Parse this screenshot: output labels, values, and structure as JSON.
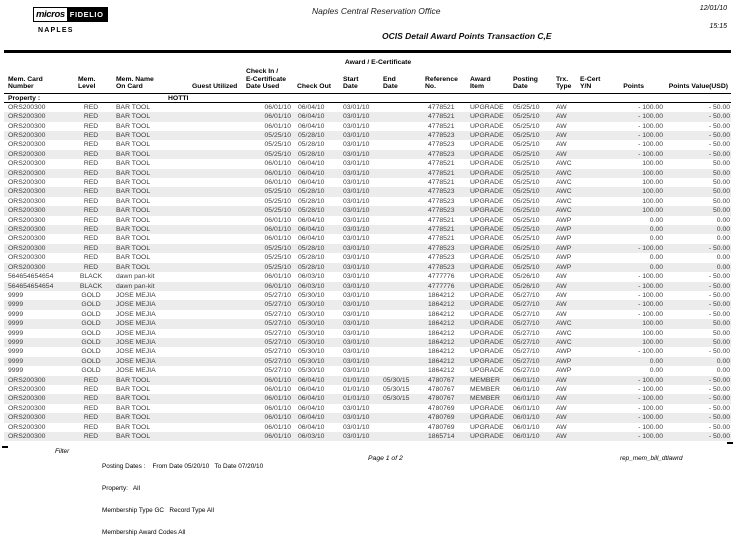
{
  "header": {
    "logo": {
      "brand_bold": "micros",
      "brand_box": "FIDELIO",
      "property": "NAPLES"
    },
    "office": "Naples Central Reservation Office",
    "report_title": "OCIS Detail Award Points Transaction C,E",
    "date": "12/01/10",
    "time": "15:15"
  },
  "table": {
    "group_header": "Award / E-Certificate",
    "headers": [
      "Mem. Card\nNumber",
      "Mem.\nLevel",
      "Mem. Name\nOn Card",
      "Guest Utilized",
      "Check In /\nE-Certificate\nDate Used",
      "Check Out",
      "Start\nDate",
      "End\nDate",
      "Reference No.",
      "Award\nItem",
      "Posting\nDate",
      "Trx.\nType",
      "E-Cert\nY/N",
      "Points",
      "Points Value(USD)"
    ],
    "property_label": "Property :",
    "property_value": "HOTTI",
    "rows": [
      [
        "ORS200300",
        "RED",
        "BAR TOOL",
        "",
        "06/01/10",
        "06/04/10",
        "03/01/10",
        "",
        "4778521",
        "UPGRADE",
        "05/25/10",
        "AW",
        "",
        "- 100.00",
        "- 50.00"
      ],
      [
        "ORS200300",
        "RED",
        "BAR TOOL",
        "",
        "06/01/10",
        "06/04/10",
        "03/01/10",
        "",
        "4778521",
        "UPGRADE",
        "05/25/10",
        "AW",
        "",
        "- 100.00",
        "- 50.00"
      ],
      [
        "ORS200300",
        "RED",
        "BAR TOOL",
        "",
        "06/01/10",
        "06/04/10",
        "03/01/10",
        "",
        "4778521",
        "UPGRADE",
        "05/25/10",
        "AW",
        "",
        "- 100.00",
        "- 50.00"
      ],
      [
        "ORS200300",
        "RED",
        "BAR TOOL",
        "",
        "05/25/10",
        "05/28/10",
        "03/01/10",
        "",
        "4778523",
        "UPGRADE",
        "05/25/10",
        "AW",
        "",
        "- 100.00",
        "- 50.00"
      ],
      [
        "ORS200300",
        "RED",
        "BAR TOOL",
        "",
        "05/25/10",
        "05/28/10",
        "03/01/10",
        "",
        "4778523",
        "UPGRADE",
        "05/25/10",
        "AW",
        "",
        "- 100.00",
        "- 50.00"
      ],
      [
        "ORS200300",
        "RED",
        "BAR TOOL",
        "",
        "05/25/10",
        "05/28/10",
        "03/01/10",
        "",
        "4778523",
        "UPGRADE",
        "05/25/10",
        "AW",
        "",
        "- 100.00",
        "- 50.00"
      ],
      [
        "ORS200300",
        "RED",
        "BAR TOOL",
        "",
        "06/01/10",
        "06/04/10",
        "03/01/10",
        "",
        "4778521",
        "UPGRADE",
        "05/25/10",
        "AWC",
        "",
        "100.00",
        "50.00"
      ],
      [
        "ORS200300",
        "RED",
        "BAR TOOL",
        "",
        "06/01/10",
        "06/04/10",
        "03/01/10",
        "",
        "4778521",
        "UPGRADE",
        "05/25/10",
        "AWC",
        "",
        "100.00",
        "50.00"
      ],
      [
        "ORS200300",
        "RED",
        "BAR TOOL",
        "",
        "06/01/10",
        "06/04/10",
        "03/01/10",
        "",
        "4778521",
        "UPGRADE",
        "05/25/10",
        "AWC",
        "",
        "100.00",
        "50.00"
      ],
      [
        "ORS200300",
        "RED",
        "BAR TOOL",
        "",
        "05/25/10",
        "05/28/10",
        "03/01/10",
        "",
        "4778523",
        "UPGRADE",
        "05/25/10",
        "AWC",
        "",
        "100.00",
        "50.00"
      ],
      [
        "ORS200300",
        "RED",
        "BAR TOOL",
        "",
        "05/25/10",
        "05/28/10",
        "03/01/10",
        "",
        "4778523",
        "UPGRADE",
        "05/25/10",
        "AWC",
        "",
        "100.00",
        "50.00"
      ],
      [
        "ORS200300",
        "RED",
        "BAR TOOL",
        "",
        "05/25/10",
        "05/28/10",
        "03/01/10",
        "",
        "4778523",
        "UPGRADE",
        "05/25/10",
        "AWC",
        "",
        "100.00",
        "50.00"
      ],
      [
        "ORS200300",
        "RED",
        "BAR TOOL",
        "",
        "06/01/10",
        "06/04/10",
        "03/01/10",
        "",
        "4778521",
        "UPGRADE",
        "05/25/10",
        "AWP",
        "",
        "0.00",
        "0.00"
      ],
      [
        "ORS200300",
        "RED",
        "BAR TOOL",
        "",
        "06/01/10",
        "06/04/10",
        "03/01/10",
        "",
        "4778521",
        "UPGRADE",
        "05/25/10",
        "AWP",
        "",
        "0.00",
        "0.00"
      ],
      [
        "ORS200300",
        "RED",
        "BAR TOOL",
        "",
        "06/01/10",
        "06/04/10",
        "03/01/10",
        "",
        "4778521",
        "UPGRADE",
        "05/25/10",
        "AWP",
        "",
        "0.00",
        "0.00"
      ],
      [
        "ORS200300",
        "RED",
        "BAR TOOL",
        "",
        "05/25/10",
        "05/28/10",
        "03/01/10",
        "",
        "4778523",
        "UPGRADE",
        "05/25/10",
        "AWP",
        "",
        "- 100.00",
        "- 50.00"
      ],
      [
        "ORS200300",
        "RED",
        "BAR TOOL",
        "",
        "05/25/10",
        "05/28/10",
        "03/01/10",
        "",
        "4778523",
        "UPGRADE",
        "05/25/10",
        "AWP",
        "",
        "0.00",
        "0.00"
      ],
      [
        "ORS200300",
        "RED",
        "BAR TOOL",
        "",
        "05/25/10",
        "05/28/10",
        "03/01/10",
        "",
        "4778523",
        "UPGRADE",
        "05/25/10",
        "AWP",
        "",
        "0.00",
        "0.00"
      ],
      [
        "564654654654",
        "BLACK",
        "dawn pan-kit",
        "",
        "06/01/10",
        "06/03/10",
        "03/01/10",
        "",
        "4777776",
        "UPGRADE",
        "05/26/10",
        "AW",
        "",
        "- 100.00",
        "- 50.00"
      ],
      [
        "564654654654",
        "BLACK",
        "dawn pan-kit",
        "",
        "06/01/10",
        "06/03/10",
        "03/01/10",
        "",
        "4777776",
        "UPGRADE",
        "05/26/10",
        "AW",
        "",
        "- 100.00",
        "- 50.00"
      ],
      [
        "9999",
        "GOLD",
        "JOSE MEJIA",
        "",
        "05/27/10",
        "05/30/10",
        "03/01/10",
        "",
        "1864212",
        "UPGRADE",
        "05/27/10",
        "AW",
        "",
        "- 100.00",
        "- 50.00"
      ],
      [
        "9999",
        "GOLD",
        "JOSE MEJIA",
        "",
        "05/27/10",
        "05/30/10",
        "03/01/10",
        "",
        "1864212",
        "UPGRADE",
        "05/27/10",
        "AW",
        "",
        "- 100.00",
        "- 50.00"
      ],
      [
        "9999",
        "GOLD",
        "JOSE MEJIA",
        "",
        "05/27/10",
        "05/30/10",
        "03/01/10",
        "",
        "1864212",
        "UPGRADE",
        "05/27/10",
        "AW",
        "",
        "- 100.00",
        "- 50.00"
      ],
      [
        "9999",
        "GOLD",
        "JOSE MEJIA",
        "",
        "05/27/10",
        "05/30/10",
        "03/01/10",
        "",
        "1864212",
        "UPGRADE",
        "05/27/10",
        "AWC",
        "",
        "100.00",
        "50.00"
      ],
      [
        "9999",
        "GOLD",
        "JOSE MEJIA",
        "",
        "05/27/10",
        "05/30/10",
        "03/01/10",
        "",
        "1864212",
        "UPGRADE",
        "05/27/10",
        "AWC",
        "",
        "100.00",
        "50.00"
      ],
      [
        "9999",
        "GOLD",
        "JOSE MEJIA",
        "",
        "05/27/10",
        "05/30/10",
        "03/01/10",
        "",
        "1864212",
        "UPGRADE",
        "05/27/10",
        "AWC",
        "",
        "100.00",
        "50.00"
      ],
      [
        "9999",
        "GOLD",
        "JOSE MEJIA",
        "",
        "05/27/10",
        "05/30/10",
        "03/01/10",
        "",
        "1864212",
        "UPGRADE",
        "05/27/10",
        "AWP",
        "",
        "- 100.00",
        "- 50.00"
      ],
      [
        "9999",
        "GOLD",
        "JOSE MEJIA",
        "",
        "05/27/10",
        "05/30/10",
        "03/01/10",
        "",
        "1864212",
        "UPGRADE",
        "05/27/10",
        "AWP",
        "",
        "0.00",
        "0.00"
      ],
      [
        "9999",
        "GOLD",
        "JOSE MEJIA",
        "",
        "05/27/10",
        "05/30/10",
        "03/01/10",
        "",
        "1864212",
        "UPGRADE",
        "05/27/10",
        "AWP",
        "",
        "0.00",
        "0.00"
      ],
      [
        "ORS200300",
        "RED",
        "BAR TOOL",
        "",
        "06/01/10",
        "06/04/10",
        "01/01/10",
        "05/30/15",
        "4780767",
        "MEMBER",
        "06/01/10",
        "AW",
        "",
        "- 100.00",
        "- 50.00"
      ],
      [
        "ORS200300",
        "RED",
        "BAR TOOL",
        "",
        "06/01/10",
        "06/04/10",
        "01/01/10",
        "05/30/15",
        "4780767",
        "MEMBER",
        "06/01/10",
        "AW",
        "",
        "- 100.00",
        "- 50.00"
      ],
      [
        "ORS200300",
        "RED",
        "BAR TOOL",
        "",
        "06/01/10",
        "06/04/10",
        "01/01/10",
        "05/30/15",
        "4780767",
        "MEMBER",
        "06/01/10",
        "AW",
        "",
        "- 100.00",
        "- 50.00"
      ],
      [
        "ORS200300",
        "RED",
        "BAR TOOL",
        "",
        "06/01/10",
        "06/04/10",
        "03/01/10",
        "",
        "4780769",
        "UPGRADE",
        "06/01/10",
        "AW",
        "",
        "- 100.00",
        "- 50.00"
      ],
      [
        "ORS200300",
        "RED",
        "BAR TOOL",
        "",
        "06/01/10",
        "06/04/10",
        "03/01/10",
        "",
        "4780769",
        "UPGRADE",
        "06/01/10",
        "AW",
        "",
        "- 100.00",
        "- 50.00"
      ],
      [
        "ORS200300",
        "RED",
        "BAR TOOL",
        "",
        "06/01/10",
        "06/04/10",
        "03/01/10",
        "",
        "4780769",
        "UPGRADE",
        "06/01/10",
        "AW",
        "",
        "- 100.00",
        "- 50.00"
      ],
      [
        "ORS200300",
        "RED",
        "BAR TOOL",
        "",
        "06/01/10",
        "06/03/10",
        "03/01/10",
        "",
        "1865714",
        "UPGRADE",
        "06/01/10",
        "AW",
        "",
        "- 100.00",
        "- 50.00"
      ]
    ]
  },
  "footer": {
    "filter_label": "Filter",
    "filter_lines": [
      "Posting Dates :    From Date 05/20/10   To Date 07/20/10",
      "Property:   All",
      "Membership Type GC   Record Type All",
      "Membership Award Codes All"
    ],
    "page": "Page 1 of 2",
    "report_id": "rep_mem_bill_dtlawrd"
  },
  "colors": {
    "stripe": "#ececec",
    "rule": "#000000"
  }
}
